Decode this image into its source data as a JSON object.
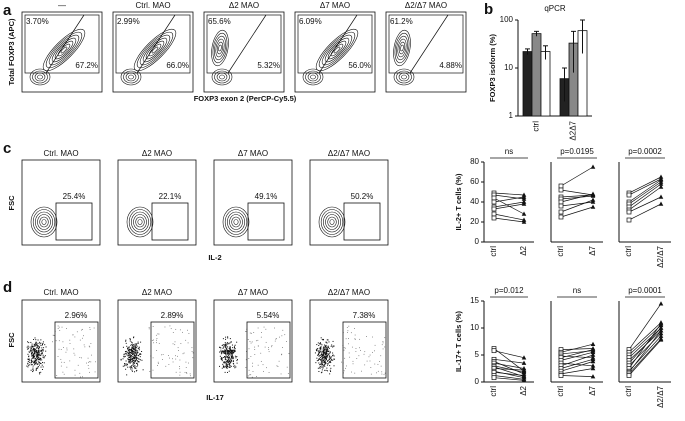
{
  "panel_labels": [
    "a",
    "b",
    "c",
    "d"
  ],
  "panel_a": {
    "columns": [
      "—",
      "Ctrl. MAO",
      "Δ2 MAO",
      "Δ7 MAO",
      "Δ2/Δ7 MAO"
    ],
    "upper_left": [
      "3.70%",
      "2.99%",
      "65.6%",
      "6.09%",
      "61.2%"
    ],
    "lower_right": [
      "67.2%",
      "66.0%",
      "5.32%",
      "56.0%",
      "4.88%"
    ],
    "y_label": "Total FOXP3 (APC)",
    "x_label": "FOXP3 exon 2 (PerCP-Cy5.5)"
  },
  "panel_c": {
    "columns": [
      "Ctrl. MAO",
      "Δ2 MAO",
      "Δ7 MAO",
      "Δ2/Δ7 MAO"
    ],
    "gates": [
      "25.4%",
      "22.1%",
      "49.1%",
      "50.2%"
    ],
    "y_label": "FSC",
    "x_label": "IL-2"
  },
  "panel_d": {
    "columns": [
      "Ctrl. MAO",
      "Δ2 MAO",
      "Δ7 MAO",
      "Δ2/Δ7 MAO"
    ],
    "gates": [
      "2.96%",
      "2.89%",
      "5.54%",
      "7.38%"
    ],
    "y_label": "FSC",
    "x_label": "IL-17"
  },
  "chart_data": [
    {
      "type": "bar",
      "title": "qPCR",
      "ylabel": "FOXP3 isoform (%)",
      "categories": [
        "ctrl",
        "Δ2Δ7"
      ],
      "log_y": true,
      "ylim": [
        1,
        100
      ],
      "yticks": [
        1,
        10,
        100
      ],
      "series": [
        {
          "color": "#222222",
          "values": [
            22,
            6
          ],
          "errors": [
            3,
            4
          ]
        },
        {
          "color": "#888888",
          "values": [
            52,
            33
          ],
          "errors": [
            6,
            25
          ]
        },
        {
          "color": "#ffffff",
          "values": [
            22,
            60
          ],
          "errors": [
            7,
            40
          ]
        }
      ]
    },
    {
      "type": "paired",
      "ylabel": "IL-2+ T cells (%)",
      "categories": [
        "ctrl",
        "Δ2"
      ],
      "annotation": "ns",
      "ylim": [
        0,
        80
      ],
      "yticks": [
        0,
        20,
        40,
        60,
        80
      ],
      "pairs": [
        [
          49,
          47
        ],
        [
          47,
          43
        ],
        [
          44,
          28
        ],
        [
          40,
          45
        ],
        [
          35,
          40
        ],
        [
          33,
          38
        ],
        [
          28,
          22
        ],
        [
          24,
          20
        ]
      ]
    },
    {
      "type": "paired",
      "categories": [
        "ctrl",
        "Δ7"
      ],
      "annotation": "p=0.0195",
      "ylim": [
        0,
        80
      ],
      "pairs": [
        [
          56,
          75
        ],
        [
          52,
          47
        ],
        [
          45,
          47
        ],
        [
          43,
          46
        ],
        [
          40,
          48
        ],
        [
          36,
          40
        ],
        [
          30,
          42
        ],
        [
          25,
          35
        ]
      ]
    },
    {
      "type": "paired",
      "categories": [
        "ctrl",
        "Δ2/Δ7"
      ],
      "annotation": "p=0.0002",
      "ylim": [
        0,
        80
      ],
      "pairs": [
        [
          49,
          65
        ],
        [
          47,
          63
        ],
        [
          40,
          62
        ],
        [
          38,
          60
        ],
        [
          35,
          58
        ],
        [
          32,
          55
        ],
        [
          30,
          45
        ],
        [
          22,
          38
        ]
      ]
    },
    {
      "type": "paired",
      "ylabel": "IL-17+ T cells (%)",
      "categories": [
        "ctrl",
        "Δ2"
      ],
      "annotation": "p=0.012",
      "ylim": [
        0,
        15
      ],
      "yticks": [
        0,
        5,
        10,
        15
      ],
      "pairs": [
        [
          6.2,
          2.0
        ],
        [
          5.8,
          4.5
        ],
        [
          4.2,
          3.5
        ],
        [
          3.8,
          1.5
        ],
        [
          3.5,
          2.5
        ],
        [
          3.0,
          1.8
        ],
        [
          2.8,
          1.0
        ],
        [
          2.5,
          2.2
        ],
        [
          2.0,
          0.8
        ],
        [
          1.8,
          1.2
        ],
        [
          1.2,
          0.5
        ],
        [
          0.8,
          0.3
        ]
      ]
    },
    {
      "type": "paired",
      "categories": [
        "ctrl",
        "Δ7"
      ],
      "annotation": "ns",
      "ylim": [
        0,
        15
      ],
      "pairs": [
        [
          6.0,
          6.2
        ],
        [
          5.5,
          7.0
        ],
        [
          5.2,
          5.8
        ],
        [
          4.8,
          4.5
        ],
        [
          4.5,
          6.0
        ],
        [
          4.0,
          5.5
        ],
        [
          3.5,
          3.0
        ],
        [
          3.0,
          5.0
        ],
        [
          2.5,
          4.2
        ],
        [
          2.0,
          3.8
        ],
        [
          1.5,
          2.5
        ],
        [
          1.2,
          1.0
        ]
      ]
    },
    {
      "type": "paired",
      "categories": [
        "ctrl",
        "Δ2/Δ7"
      ],
      "annotation": "p=0.0001",
      "ylim": [
        0,
        15
      ],
      "pairs": [
        [
          6.0,
          14.5
        ],
        [
          5.5,
          11
        ],
        [
          5.0,
          10.5
        ],
        [
          4.5,
          10
        ],
        [
          4.0,
          9.5
        ],
        [
          3.5,
          10
        ],
        [
          3.0,
          9
        ],
        [
          2.5,
          10.8
        ],
        [
          2.0,
          8.5
        ],
        [
          1.8,
          9.5
        ],
        [
          1.5,
          8
        ],
        [
          1.2,
          7.8
        ]
      ]
    }
  ]
}
